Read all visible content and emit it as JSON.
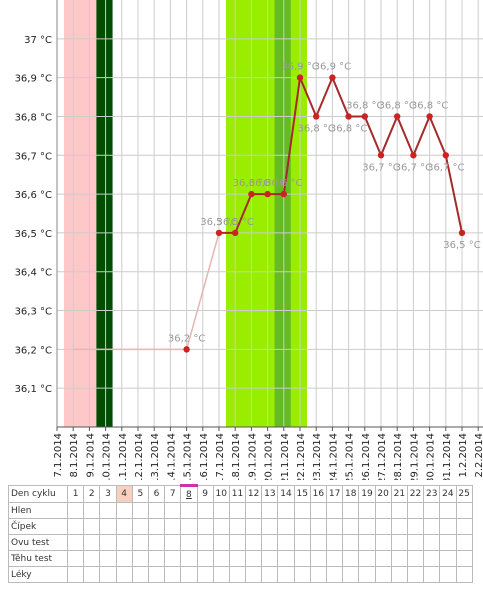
{
  "chart_data": {
    "type": "line",
    "categories": [
      "7.1.2014",
      "8.1.2014",
      "9.1.2014",
      "10.1.2014",
      "11.1.2014",
      "12.1.2014",
      "13.1.2014",
      "14.1.2014",
      "15.1.2014",
      "16.1.2014",
      "17.1.2014",
      "18.1.2014",
      "19.1.2014",
      "20.1.2014",
      "21.1.2014",
      "22.1.2014",
      "23.1.2014",
      "24.1.2014",
      "25.1.2014",
      "26.1.2014",
      "27.1.2014",
      "28.1.2014",
      "29.1.2014",
      "30.1.2014",
      "31.1.2014",
      "1.2.2014",
      "2.2.2014"
    ],
    "series": [
      {
        "color": "#e8b4b4",
        "markers": false,
        "values": [
          null,
          36.2,
          36.2,
          36.2,
          36.2,
          36.2,
          36.2,
          36.2,
          36.2,
          36.35,
          36.5,
          null,
          null,
          null,
          null,
          null,
          null,
          null,
          null,
          null,
          null,
          null,
          null,
          null,
          null,
          null,
          null
        ]
      },
      {
        "color": "#a52a2a",
        "markers": true,
        "values": [
          null,
          null,
          null,
          null,
          null,
          null,
          null,
          null,
          36.2,
          null,
          36.5,
          36.5,
          36.6,
          36.6,
          36.6,
          36.9,
          36.8,
          36.9,
          36.8,
          36.8,
          36.7,
          36.8,
          36.7,
          36.8,
          36.7,
          36.5,
          null
        ],
        "value_labels": [
          null,
          null,
          null,
          null,
          null,
          null,
          null,
          null,
          "36,2 °C",
          null,
          "36,5 °C",
          "36,5 °C",
          "36,6 °C",
          "36,6 °C",
          "36,6 °C",
          "36,9 °C",
          "36,8 °C",
          "36,9 °C",
          "36,8 °C",
          "36,8 °C",
          "36,7 °C",
          "36,8 °C",
          "36,7 °C",
          "36,8 °C",
          "36,7 °C",
          "36,5 °C",
          null
        ]
      }
    ],
    "bands": [
      {
        "from": "8.1.2014",
        "to": "9.1.2014",
        "color": "#ffc8c8"
      },
      {
        "from": "10.1.2014",
        "to": "10.1.2014",
        "color": "#004d00"
      },
      {
        "from": "18.1.2014",
        "to": "22.1.2014",
        "color": "#99ee00"
      },
      {
        "from": "21.1.2014",
        "to": "21.1.2014",
        "color": "#66bb22"
      }
    ],
    "ylim": [
      36.0,
      37.1
    ],
    "yticks": [
      {
        "value": 36.1,
        "label": "36,1 °C"
      },
      {
        "value": 36.2,
        "label": "36,2 °C"
      },
      {
        "value": 36.3,
        "label": "36,3 °C"
      },
      {
        "value": 36.4,
        "label": "36,4 °C"
      },
      {
        "value": 36.5,
        "label": "36,5 °C"
      },
      {
        "value": 36.6,
        "label": "36,6 °C"
      },
      {
        "value": 36.7,
        "label": "36,7 °C"
      },
      {
        "value": 36.8,
        "label": "36,8 °C"
      },
      {
        "value": 36.9,
        "label": "36,9 °C"
      },
      {
        "value": 37,
        "label": "37 °C"
      }
    ],
    "grid": true
  },
  "table": {
    "header": [
      "Den cyklu",
      "1",
      "2",
      "3",
      "4",
      "5",
      "6",
      "7",
      "8",
      "9",
      "10",
      "11",
      "12",
      "13",
      "14",
      "15",
      "16",
      "17",
      "18",
      "19",
      "20",
      "21",
      "22",
      "23",
      "24",
      "25"
    ],
    "rows": [
      "Hlen",
      "Čípek",
      "Ovu test",
      "Těhu test",
      "Léky"
    ],
    "highlight_day": 4,
    "marked_day": 8
  }
}
